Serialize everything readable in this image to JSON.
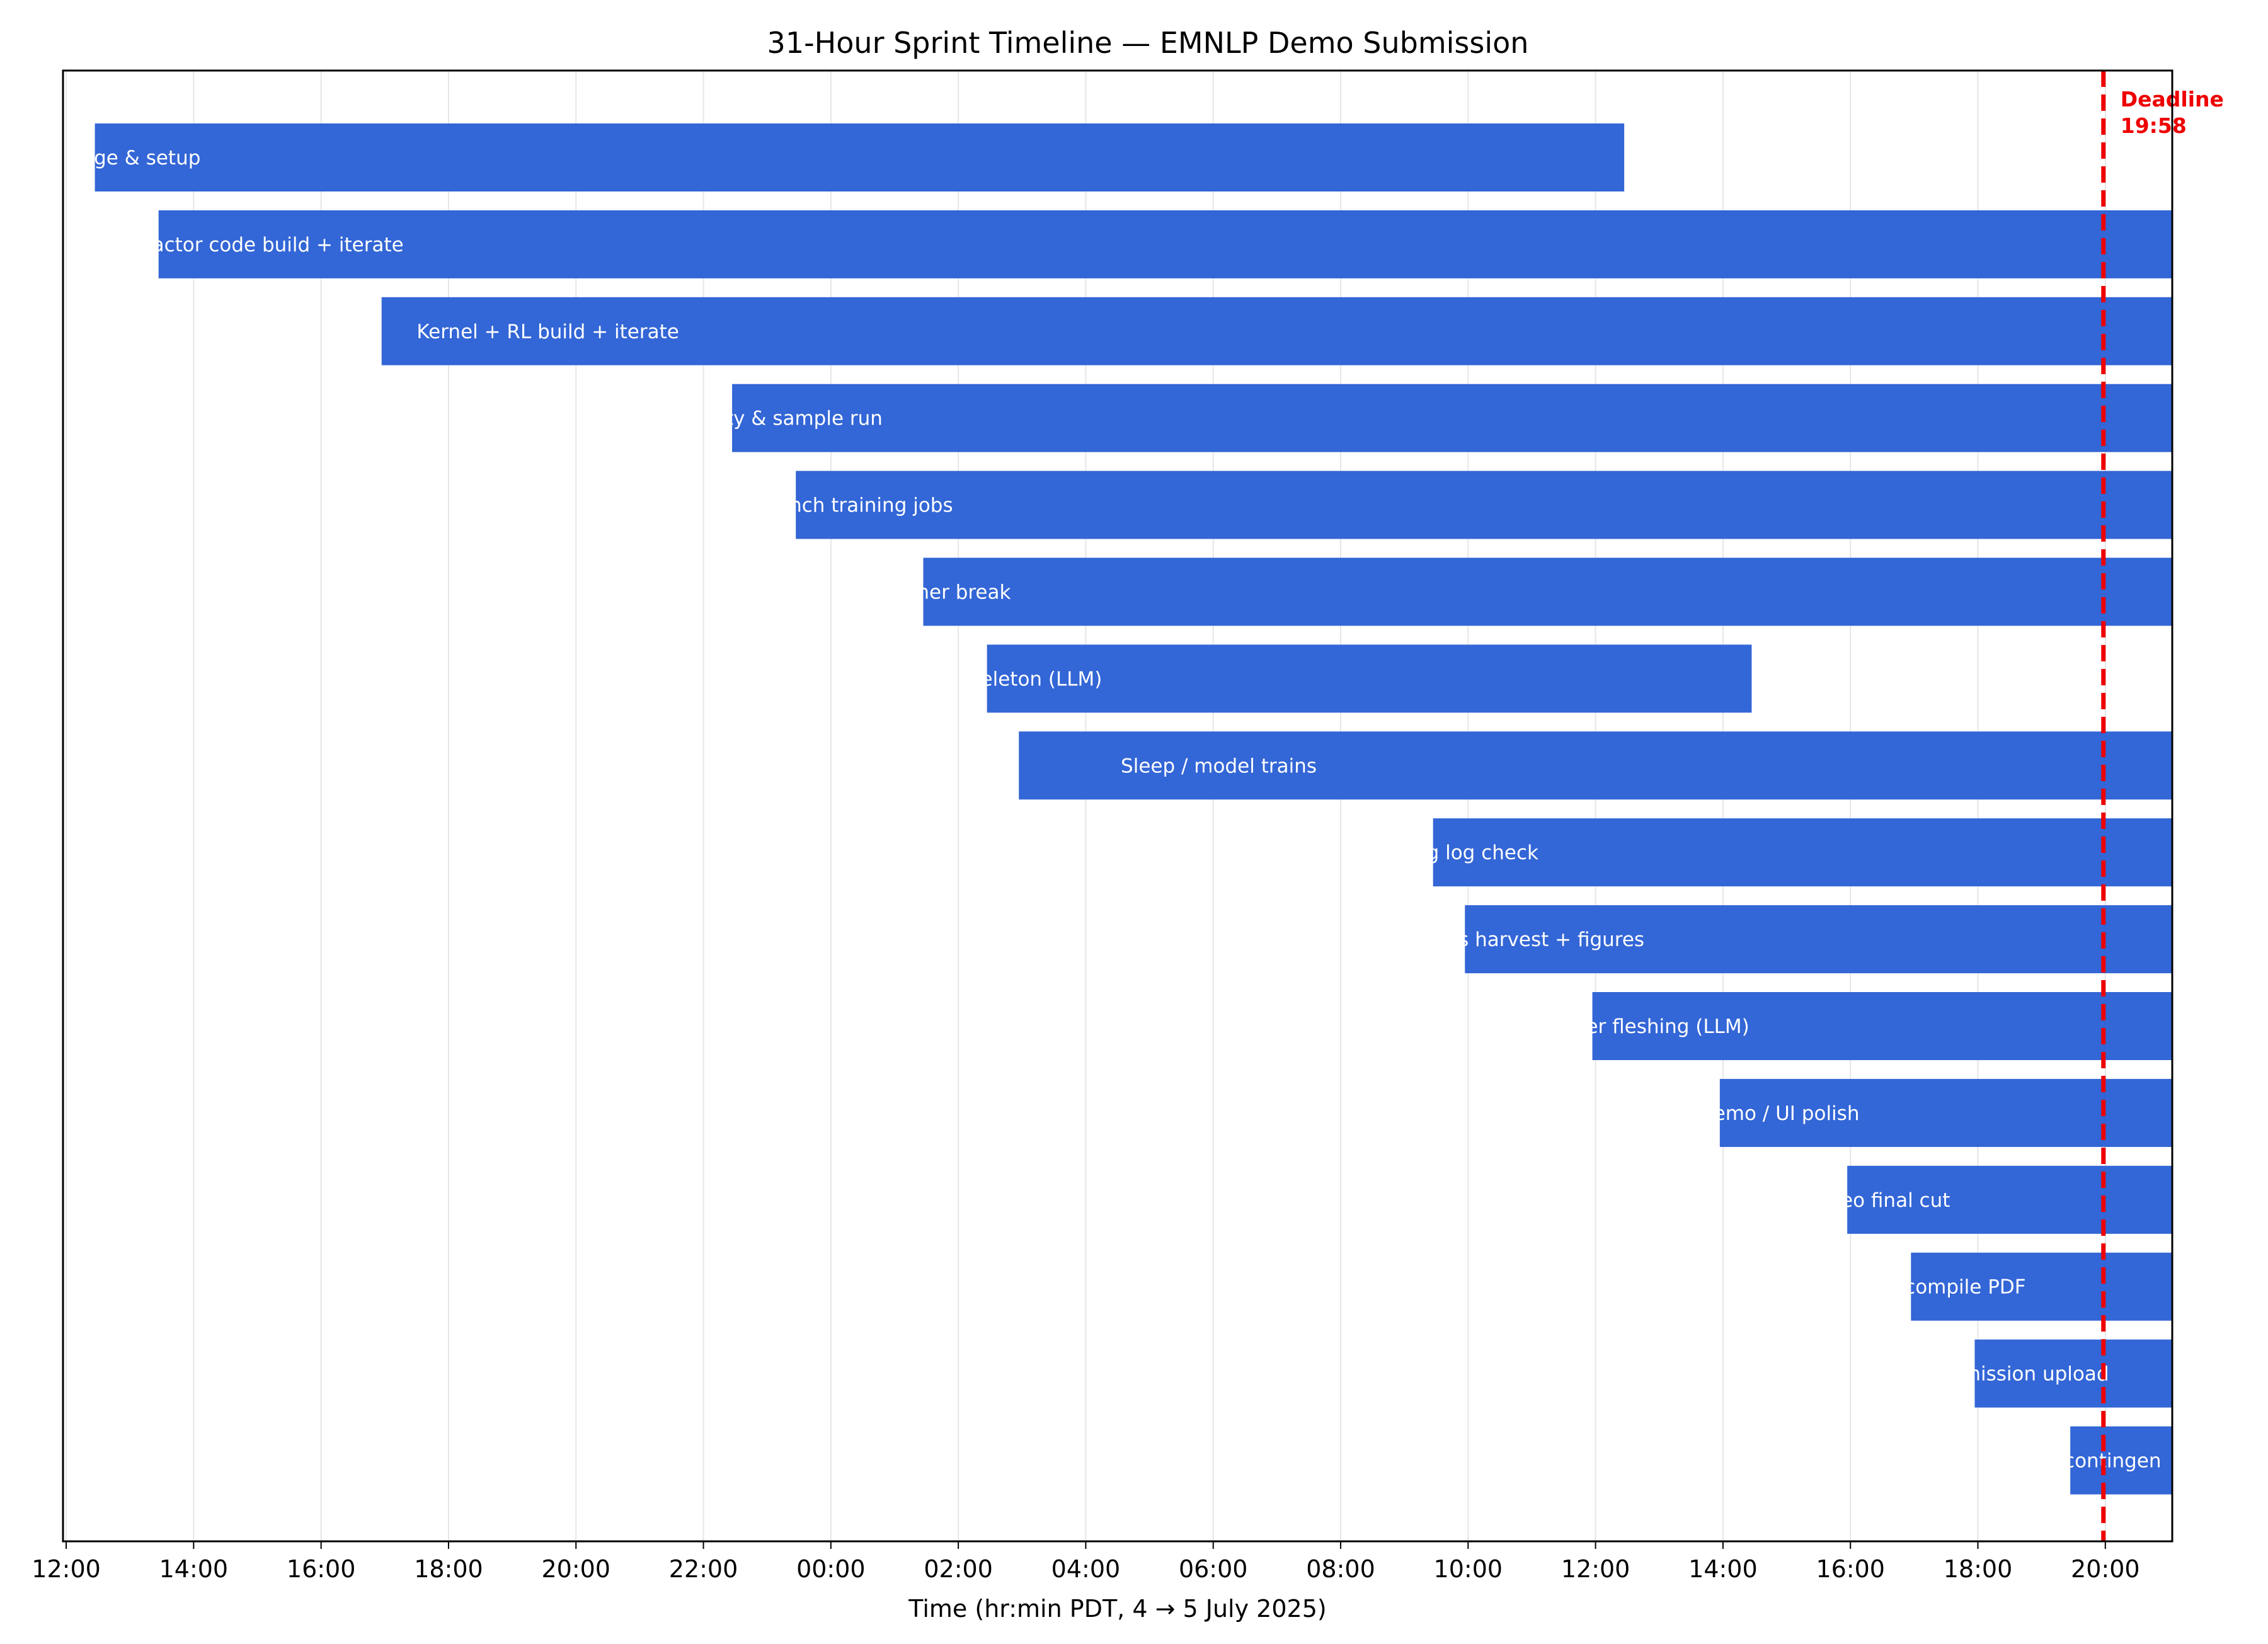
{
  "chart_data": {
    "type": "gantt",
    "title": "31-Hour Sprint Timeline — EMNLP Demo Submission",
    "xlabel": "Time (hr:min PDT, 4 → 5 July 2025)",
    "ylabel": "",
    "x_unit": "hours since 4 July 12:00 PDT",
    "xlim": [
      -0.05,
      33.05
    ],
    "x_ticks": [
      {
        "value": 0,
        "label": "12:00"
      },
      {
        "value": 2,
        "label": "14:00"
      },
      {
        "value": 4,
        "label": "16:00"
      },
      {
        "value": 6,
        "label": "18:00"
      },
      {
        "value": 8,
        "label": "20:00"
      },
      {
        "value": 10,
        "label": "22:00"
      },
      {
        "value": 12,
        "label": "00:00"
      },
      {
        "value": 14,
        "label": "02:00"
      },
      {
        "value": 16,
        "label": "04:00"
      },
      {
        "value": 18,
        "label": "06:00"
      },
      {
        "value": 20,
        "label": "08:00"
      },
      {
        "value": 22,
        "label": "10:00"
      },
      {
        "value": 24,
        "label": "12:00"
      },
      {
        "value": 26,
        "label": "14:00"
      },
      {
        "value": 28,
        "label": "16:00"
      },
      {
        "value": 30,
        "label": "18:00"
      },
      {
        "value": 32,
        "label": "20:00"
      }
    ],
    "grid": "vertical",
    "bar_color": "#3366d6",
    "label_color": "#ffffff",
    "tasks": [
      {
        "label": "ige & setup",
        "start": 0.45,
        "end": 24.45,
        "label_at": 0.35
      },
      {
        "label": "actor code build + iterate",
        "start": 1.45,
        "end": 33.05,
        "label_at": 1.35
      },
      {
        "label": "Kernel + RL build + iterate",
        "start": 4.95,
        "end": 33.05,
        "label_at": 5.5
      },
      {
        "label": "ty & sample run",
        "start": 10.45,
        "end": 33.05,
        "label_at": 10.35
      },
      {
        "label": "nch training jobs",
        "start": 11.45,
        "end": 33.05,
        "label_at": 11.35
      },
      {
        "label": "ner break",
        "start": 13.45,
        "end": 33.05,
        "label_at": 13.35
      },
      {
        "label": "eleton (LLM)",
        "start": 14.45,
        "end": 26.45,
        "label_at": 14.35
      },
      {
        "label": "Sleep / model trains",
        "start": 14.95,
        "end": 33.05,
        "label_at": 16.55
      },
      {
        "label": "g log check",
        "start": 21.45,
        "end": 33.05,
        "label_at": 21.35
      },
      {
        "label": "s harvest + figures",
        "start": 21.95,
        "end": 33.05,
        "label_at": 21.85
      },
      {
        "label": "er fleshing (LLM)",
        "start": 23.95,
        "end": 33.05,
        "label_at": 23.85
      },
      {
        "label": "emo / UI polish",
        "start": 25.95,
        "end": 33.05,
        "label_at": 25.85
      },
      {
        "label": "eo final cut",
        "start": 27.95,
        "end": 33.05,
        "label_at": 27.85
      },
      {
        "label": "compile PDF",
        "start": 28.95,
        "end": 33.05,
        "label_at": 28.85
      },
      {
        "label": "nission upload",
        "start": 29.95,
        "end": 33.05,
        "label_at": 29.85
      },
      {
        "label": "contingen",
        "start": 31.45,
        "end": 33.05,
        "label_at": 31.35
      }
    ],
    "deadline": {
      "value": 31.97,
      "label_line1": "Deadline",
      "label_line2": "19:58",
      "color": "#ee0000"
    }
  }
}
